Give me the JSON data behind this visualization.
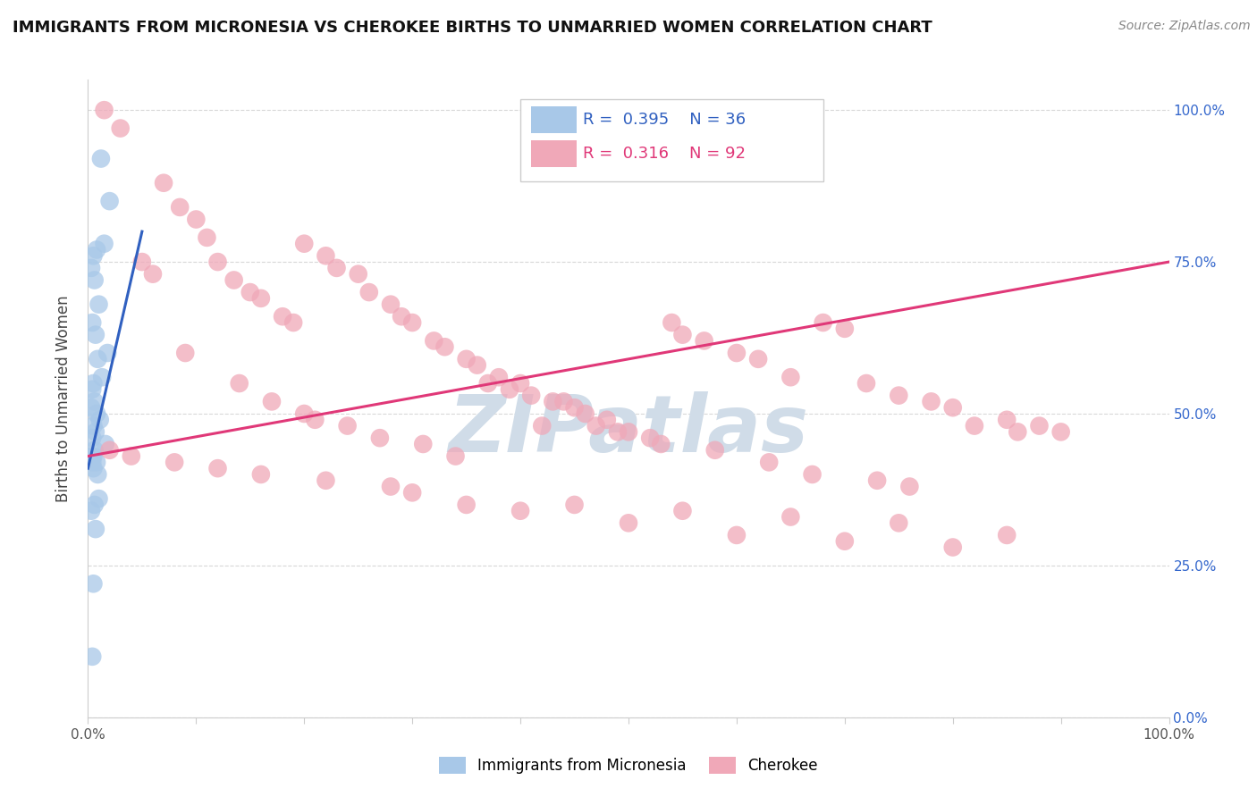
{
  "title": "IMMIGRANTS FROM MICRONESIA VS CHEROKEE BIRTHS TO UNMARRIED WOMEN CORRELATION CHART",
  "source": "Source: ZipAtlas.com",
  "ylabel": "Births to Unmarried Women",
  "xlim": [
    0,
    100
  ],
  "ylim": [
    0,
    105
  ],
  "blue_R": 0.395,
  "blue_N": 36,
  "pink_R": 0.316,
  "pink_N": 92,
  "blue_color": "#a8c8e8",
  "pink_color": "#f0a8b8",
  "blue_line_color": "#3060c0",
  "pink_line_color": "#e03878",
  "blue_scatter_x": [
    1.2,
    2.0,
    1.5,
    0.8,
    0.5,
    0.3,
    0.6,
    1.0,
    0.4,
    0.7,
    1.8,
    0.9,
    1.3,
    0.5,
    0.4,
    0.6,
    0.3,
    0.8,
    1.1,
    0.5,
    0.7,
    0.4,
    1.6,
    0.6,
    0.5,
    0.3,
    0.8,
    0.4,
    0.5,
    0.9,
    1.0,
    0.6,
    0.3,
    0.7,
    0.5,
    0.4
  ],
  "blue_scatter_y": [
    92,
    85,
    78,
    77,
    76,
    74,
    72,
    68,
    65,
    63,
    60,
    59,
    56,
    55,
    54,
    52,
    51,
    50,
    49,
    48,
    47,
    46,
    45,
    44,
    43,
    43,
    42,
    42,
    41,
    40,
    36,
    35,
    34,
    31,
    22,
    10
  ],
  "pink_scatter_x": [
    1.5,
    3.0,
    7.0,
    8.5,
    10.0,
    11.0,
    12.0,
    13.5,
    15.0,
    16.0,
    18.0,
    19.0,
    20.0,
    22.0,
    23.0,
    25.0,
    26.0,
    28.0,
    29.0,
    30.0,
    32.0,
    33.0,
    35.0,
    36.0,
    38.0,
    40.0,
    41.0,
    43.0,
    45.0,
    46.0,
    48.0,
    50.0,
    52.0,
    54.0,
    55.0,
    57.0,
    60.0,
    62.0,
    65.0,
    68.0,
    70.0,
    72.0,
    75.0,
    78.0,
    80.0,
    85.0,
    88.0,
    90.0,
    5.0,
    6.0,
    9.0,
    14.0,
    17.0,
    21.0,
    24.0,
    27.0,
    31.0,
    34.0,
    37.0,
    39.0,
    44.0,
    47.0,
    49.0,
    53.0,
    58.0,
    63.0,
    67.0,
    73.0,
    76.0,
    82.0,
    86.0,
    2.0,
    4.0,
    8.0,
    12.0,
    16.0,
    22.0,
    28.0,
    35.0,
    40.0,
    50.0,
    60.0,
    70.0,
    80.0,
    30.0,
    45.0,
    55.0,
    65.0,
    75.0,
    85.0,
    20.0,
    42.0
  ],
  "pink_scatter_y": [
    100,
    97,
    88,
    84,
    82,
    79,
    75,
    72,
    70,
    69,
    66,
    65,
    78,
    76,
    74,
    73,
    70,
    68,
    66,
    65,
    62,
    61,
    59,
    58,
    56,
    55,
    53,
    52,
    51,
    50,
    49,
    47,
    46,
    65,
    63,
    62,
    60,
    59,
    56,
    65,
    64,
    55,
    53,
    52,
    51,
    49,
    48,
    47,
    75,
    73,
    60,
    55,
    52,
    49,
    48,
    46,
    45,
    43,
    55,
    54,
    52,
    48,
    47,
    45,
    44,
    42,
    40,
    39,
    38,
    48,
    47,
    44,
    43,
    42,
    41,
    40,
    39,
    38,
    35,
    34,
    32,
    30,
    29,
    28,
    37,
    35,
    34,
    33,
    32,
    30,
    50,
    48
  ],
  "blue_trend_x": [
    0,
    5
  ],
  "blue_trend_y": [
    41,
    80
  ],
  "pink_trend_x": [
    0,
    100
  ],
  "pink_trend_y": [
    43,
    75
  ],
  "watermark_text": "ZIPatlas",
  "watermark_color": "#d0dce8",
  "background_color": "#FFFFFF",
  "grid_color": "#d8d8d8",
  "ytick_labels_right": [
    "0.0%",
    "25.0%",
    "50.0%",
    "75.0%",
    "100.0%"
  ]
}
